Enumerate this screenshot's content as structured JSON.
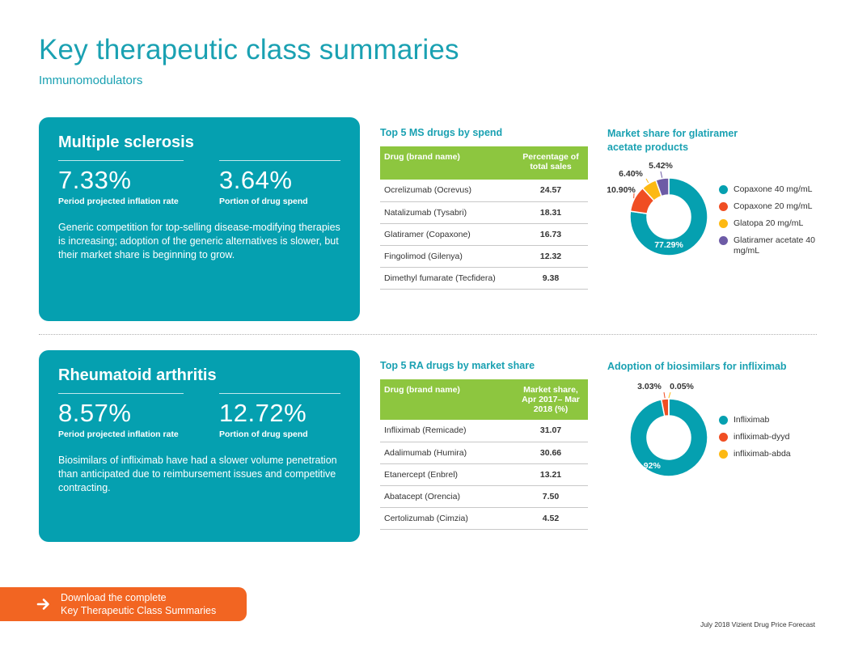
{
  "header": {
    "title": "Key therapeutic class summaries",
    "subtitle": "Immunomodulators"
  },
  "ms": {
    "title": "Multiple sclerosis",
    "stat1_value": "7.33%",
    "stat1_label": "Period projected inflation rate",
    "stat2_value": "3.64%",
    "stat2_label": "Portion of drug spend",
    "text": "Generic competition for top-selling disease-modifying therapies is increasing; adoption of the generic alternatives is slower, but their market share is beginning to grow.",
    "table": {
      "title": "Top 5 MS drugs by spend",
      "col1": "Drug (brand name)",
      "col2": "Percentage of total sales",
      "rows": [
        {
          "drug": "Ocrelizumab (Ocrevus)",
          "value": "24.57"
        },
        {
          "drug": "Natalizumab (Tysabri)",
          "value": "18.31"
        },
        {
          "drug": "Glatiramer (Copaxone)",
          "value": "16.73"
        },
        {
          "drug": "Fingolimod (Gilenya)",
          "value": "12.32"
        },
        {
          "drug": "Dimethyl fumarate (Tecfidera)",
          "value": "9.38"
        }
      ]
    }
  },
  "ra": {
    "title": "Rheumatoid arthritis",
    "stat1_value": "8.57%",
    "stat1_label": "Period projected inflation rate",
    "stat2_value": "12.72%",
    "stat2_label": "Portion of drug spend",
    "text": "Biosimilars of infliximab have had a slower volume penetration than anticipated due to reimbursement issues and competitive contracting.",
    "table": {
      "title": "Top 5 RA drugs by market share",
      "col1": "Drug (brand name)",
      "col2": "Market share, Apr 2017– Mar 2018 (%)",
      "rows": [
        {
          "drug": "Infliximab (Remicade)",
          "value": "31.07"
        },
        {
          "drug": "Adalimumab (Humira)",
          "value": "30.66"
        },
        {
          "drug": "Etanercept (Enbrel)",
          "value": "13.21"
        },
        {
          "drug": "Abatacept (Orencia)",
          "value": "7.50"
        },
        {
          "drug": "Certolizumab (Cimzia)",
          "value": "4.52"
        }
      ]
    }
  },
  "chart_data": [
    {
      "type": "pie",
      "title": "Market share for glatiramer acetate products",
      "categories": [
        "Copaxone 40 mg/mL",
        "Copaxone 20 mg/mL",
        "Glatopa 20 mg/mL",
        "Glatiramer acetate 40 mg/mL"
      ],
      "values": [
        77.29,
        10.9,
        6.4,
        5.42
      ],
      "labels": [
        "77.29%",
        "10.90%",
        "6.40%",
        "5.42%"
      ],
      "colors": [
        "#05a0b0",
        "#f04e23",
        "#fdb913",
        "#6d5ba6"
      ],
      "legend": "right"
    },
    {
      "type": "pie",
      "title": "Adoption of biosimilars for infliximab",
      "categories": [
        "Infliximab",
        "infliximab-dyyd",
        "infliximab-abda"
      ],
      "values": [
        96.92,
        3.03,
        0.05
      ],
      "labels": [
        "96.92%",
        "3.03%",
        "0.05%"
      ],
      "colors": [
        "#05a0b0",
        "#f04e23",
        "#fdb913"
      ],
      "legend": "right"
    }
  ],
  "download": {
    "line1": "Download the complete",
    "line2": "Key Therapeutic Class Summaries"
  },
  "footer": "July 2018 Vizient Drug Price Forecast"
}
